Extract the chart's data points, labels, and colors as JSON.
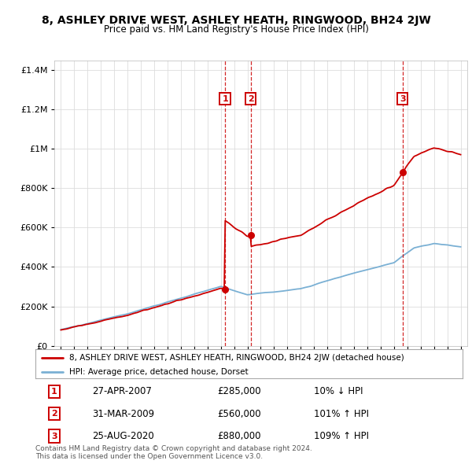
{
  "title": "8, ASHLEY DRIVE WEST, ASHLEY HEATH, RINGWOOD, BH24 2JW",
  "subtitle": "Price paid vs. HM Land Registry's House Price Index (HPI)",
  "red_line_label": "8, ASHLEY DRIVE WEST, ASHLEY HEATH, RINGWOOD, BH24 2JW (detached house)",
  "blue_line_label": "HPI: Average price, detached house, Dorset",
  "sale_events": [
    {
      "num": 1,
      "date": "27-APR-2007",
      "price": 285000,
      "year": 2007.32,
      "pct": "10%",
      "dir": "↓"
    },
    {
      "num": 2,
      "date": "31-MAR-2009",
      "price": 560000,
      "year": 2009.25,
      "pct": "101%",
      "dir": "↑"
    },
    {
      "num": 3,
      "date": "25-AUG-2020",
      "price": 880000,
      "year": 2020.65,
      "pct": "109%",
      "dir": "↑"
    }
  ],
  "footnote1": "Contains HM Land Registry data © Crown copyright and database right 2024.",
  "footnote2": "This data is licensed under the Open Government Licence v3.0.",
  "ylim": [
    0,
    1450000
  ],
  "xlim": [
    1994.5,
    2025.5
  ],
  "red_color": "#cc0000",
  "blue_color": "#7ab0d4",
  "background_color": "#ffffff",
  "grid_color": "#dddddd",
  "sale1_year": 2007.32,
  "sale1_price": 285000,
  "sale2_year": 2009.25,
  "sale2_price": 560000,
  "sale3_year": 2020.65,
  "sale3_price": 880000
}
